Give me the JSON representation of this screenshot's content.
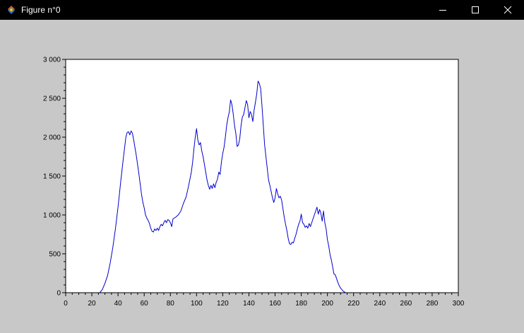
{
  "window": {
    "title": "Figure n°0",
    "app_icon": "scilab-icon",
    "buttons": {
      "minimize": "minimize-icon",
      "maximize": "maximize-icon",
      "close": "close-icon"
    }
  },
  "colors": {
    "titlebar": "#000000",
    "figure_background": "#c8c8c8",
    "axes_background": "#ffffff",
    "series_line": "#0000cc"
  },
  "chart_data": {
    "type": "line",
    "title": "",
    "xlabel": "",
    "ylabel": "",
    "xlim": [
      0,
      300
    ],
    "ylim": [
      0,
      3000
    ],
    "grid": false,
    "x_ticks": [
      0,
      20,
      40,
      60,
      80,
      100,
      120,
      140,
      160,
      180,
      200,
      220,
      240,
      260,
      280,
      300
    ],
    "x_tick_labels": [
      "0",
      "20",
      "40",
      "60",
      "80",
      "100",
      "120",
      "140",
      "160",
      "180",
      "200",
      "220",
      "240",
      "260",
      "280",
      "300"
    ],
    "y_ticks": [
      0,
      500,
      1000,
      1500,
      2000,
      2500,
      3000
    ],
    "y_tick_labels": [
      "0",
      "500",
      "1 000",
      "1 500",
      "2 000",
      "2 500",
      "3 000"
    ],
    "series": [
      {
        "values": [
          [
            26,
            0
          ],
          [
            28,
            40
          ],
          [
            30,
            120
          ],
          [
            32,
            220
          ],
          [
            34,
            380
          ],
          [
            36,
            580
          ],
          [
            38,
            820
          ],
          [
            40,
            1100
          ],
          [
            42,
            1420
          ],
          [
            44,
            1720
          ],
          [
            46,
            2000
          ],
          [
            47,
            2060
          ],
          [
            48,
            2070
          ],
          [
            49,
            2030
          ],
          [
            50,
            2080
          ],
          [
            51,
            2050
          ],
          [
            52,
            1960
          ],
          [
            53,
            1860
          ],
          [
            54,
            1760
          ],
          [
            55,
            1640
          ],
          [
            56,
            1520
          ],
          [
            57,
            1390
          ],
          [
            58,
            1260
          ],
          [
            59,
            1160
          ],
          [
            60,
            1090
          ],
          [
            61,
            1000
          ],
          [
            62,
            960
          ],
          [
            63,
            930
          ],
          [
            64,
            890
          ],
          [
            65,
            830
          ],
          [
            66,
            790
          ],
          [
            67,
            780
          ],
          [
            68,
            820
          ],
          [
            69,
            800
          ],
          [
            70,
            830
          ],
          [
            71,
            800
          ],
          [
            72,
            850
          ],
          [
            73,
            880
          ],
          [
            74,
            860
          ],
          [
            75,
            900
          ],
          [
            76,
            930
          ],
          [
            77,
            900
          ],
          [
            78,
            940
          ],
          [
            79,
            930
          ],
          [
            80,
            900
          ],
          [
            81,
            850
          ],
          [
            82,
            950
          ],
          [
            84,
            970
          ],
          [
            86,
            1000
          ],
          [
            88,
            1050
          ],
          [
            90,
            1150
          ],
          [
            92,
            1230
          ],
          [
            94,
            1380
          ],
          [
            96,
            1550
          ],
          [
            97,
            1680
          ],
          [
            98,
            1850
          ],
          [
            99,
            2000
          ],
          [
            100,
            2110
          ],
          [
            101,
            1960
          ],
          [
            102,
            1900
          ],
          [
            103,
            1930
          ],
          [
            104,
            1820
          ],
          [
            105,
            1750
          ],
          [
            106,
            1650
          ],
          [
            107,
            1550
          ],
          [
            108,
            1450
          ],
          [
            109,
            1380
          ],
          [
            110,
            1330
          ],
          [
            111,
            1380
          ],
          [
            112,
            1340
          ],
          [
            113,
            1400
          ],
          [
            114,
            1350
          ],
          [
            115,
            1420
          ],
          [
            116,
            1460
          ],
          [
            117,
            1550
          ],
          [
            118,
            1520
          ],
          [
            119,
            1680
          ],
          [
            120,
            1790
          ],
          [
            121,
            1870
          ],
          [
            122,
            2000
          ],
          [
            123,
            2150
          ],
          [
            124,
            2250
          ],
          [
            125,
            2320
          ],
          [
            126,
            2480
          ],
          [
            127,
            2420
          ],
          [
            128,
            2300
          ],
          [
            129,
            2150
          ],
          [
            130,
            2050
          ],
          [
            131,
            1880
          ],
          [
            132,
            1900
          ],
          [
            133,
            1980
          ],
          [
            134,
            2150
          ],
          [
            135,
            2260
          ],
          [
            136,
            2290
          ],
          [
            137,
            2380
          ],
          [
            138,
            2470
          ],
          [
            139,
            2420
          ],
          [
            140,
            2250
          ],
          [
            141,
            2330
          ],
          [
            142,
            2290
          ],
          [
            143,
            2200
          ],
          [
            144,
            2350
          ],
          [
            145,
            2450
          ],
          [
            146,
            2560
          ],
          [
            147,
            2720
          ],
          [
            148,
            2690
          ],
          [
            149,
            2620
          ],
          [
            150,
            2400
          ],
          [
            151,
            2150
          ],
          [
            152,
            1900
          ],
          [
            153,
            1750
          ],
          [
            154,
            1600
          ],
          [
            155,
            1450
          ],
          [
            156,
            1380
          ],
          [
            157,
            1300
          ],
          [
            158,
            1220
          ],
          [
            159,
            1160
          ],
          [
            160,
            1220
          ],
          [
            161,
            1340
          ],
          [
            162,
            1270
          ],
          [
            163,
            1220
          ],
          [
            164,
            1240
          ],
          [
            165,
            1190
          ],
          [
            166,
            1080
          ],
          [
            167,
            970
          ],
          [
            168,
            880
          ],
          [
            169,
            800
          ],
          [
            170,
            700
          ],
          [
            171,
            630
          ],
          [
            172,
            620
          ],
          [
            173,
            650
          ],
          [
            174,
            640
          ],
          [
            175,
            700
          ],
          [
            176,
            750
          ],
          [
            177,
            820
          ],
          [
            178,
            880
          ],
          [
            179,
            920
          ],
          [
            180,
            1010
          ],
          [
            181,
            900
          ],
          [
            182,
            880
          ],
          [
            183,
            840
          ],
          [
            184,
            860
          ],
          [
            185,
            830
          ],
          [
            186,
            890
          ],
          [
            187,
            850
          ],
          [
            188,
            900
          ],
          [
            189,
            950
          ],
          [
            190,
            1000
          ],
          [
            191,
            1050
          ],
          [
            192,
            1100
          ],
          [
            193,
            1010
          ],
          [
            194,
            1070
          ],
          [
            195,
            1020
          ],
          [
            196,
            920
          ],
          [
            197,
            1050
          ],
          [
            198,
            900
          ],
          [
            199,
            820
          ],
          [
            200,
            680
          ],
          [
            201,
            600
          ],
          [
            202,
            490
          ],
          [
            203,
            420
          ],
          [
            204,
            330
          ],
          [
            205,
            240
          ],
          [
            206,
            230
          ],
          [
            207,
            180
          ],
          [
            208,
            130
          ],
          [
            209,
            90
          ],
          [
            210,
            60
          ],
          [
            211,
            40
          ],
          [
            212,
            20
          ],
          [
            213,
            10
          ],
          [
            214,
            0
          ]
        ]
      }
    ]
  }
}
